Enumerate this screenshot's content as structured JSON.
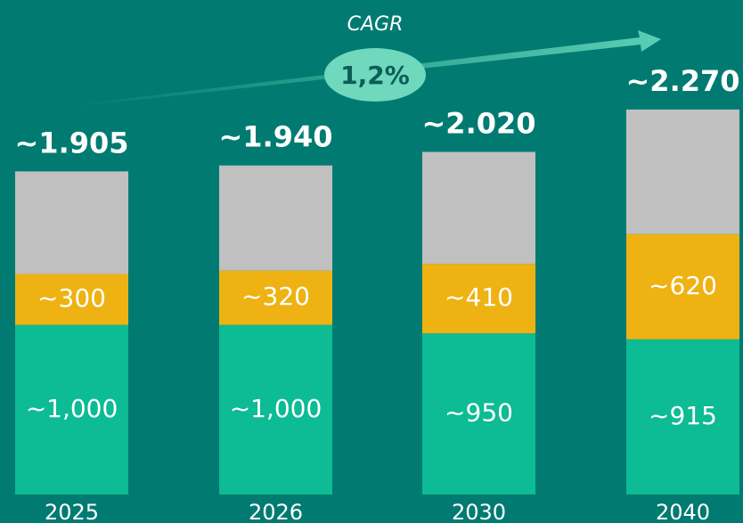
{
  "chart_data": {
    "type": "stacked_bar",
    "annotation_label": "CAGR",
    "annotation_value": "1,2%",
    "categories": [
      "2025",
      "2026",
      "2030",
      "2040"
    ],
    "series": [
      {
        "color": "#0dbb94",
        "values": [
          1000,
          1000,
          950,
          915
        ],
        "value_labels": [
          "~1,000",
          "~1,000",
          "~950",
          "~915"
        ]
      },
      {
        "color": "#eeb212",
        "values": [
          300,
          320,
          410,
          620
        ],
        "value_labels": [
          "~300",
          "~320",
          "~410",
          "~620"
        ]
      },
      {
        "color": "#c0c0c0",
        "values": [
          605,
          620,
          660,
          735
        ]
      }
    ],
    "totals": {
      "values": [
        1905,
        1940,
        2020,
        2270
      ],
      "value_labels": [
        "~1.905",
        "~1.940",
        "~2.020",
        "~2.270"
      ]
    },
    "ylim": [
      0,
      2900
    ]
  }
}
